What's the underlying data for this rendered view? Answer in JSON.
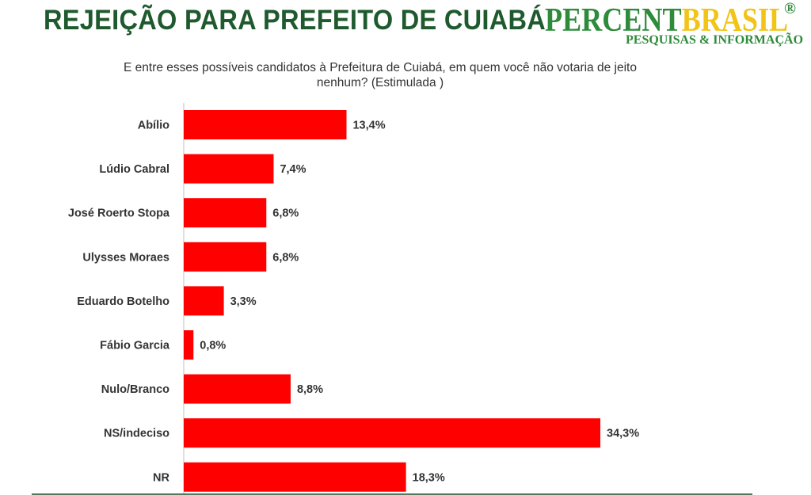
{
  "header": {
    "title": "REJEIÇÃO PARA PREFEITO DE CUIABÁ",
    "logo": {
      "text_part1": "PERCENT",
      "text_part2": "BRASIL",
      "registered_mark": "®",
      "tagline": "PESQUISAS & INFORMAÇÃO",
      "color_primary": "#2e8b3a",
      "color_secondary": "#f2c417"
    }
  },
  "question": {
    "line1": "E entre esses possíveis candidatos à Prefeitura de Cuiabá, em quem você não votaria de jeito",
    "line2": "nenhum? (Estimulada )"
  },
  "chart_data": {
    "type": "bar",
    "orientation": "horizontal",
    "categories": [
      "Abílio",
      "Lúdio Cabral",
      "José Roerto Stopa",
      "Ulysses Moraes",
      "Eduardo Botelho",
      "Fábio Garcia",
      "Nulo/Branco",
      "NS/indeciso",
      "NR"
    ],
    "values": [
      13.4,
      7.4,
      6.8,
      6.8,
      3.3,
      0.8,
      8.8,
      34.3,
      18.3
    ],
    "value_labels": [
      "13,4%",
      "7,4%",
      "6,8%",
      "6,8%",
      "3,3%",
      "0,8%",
      "8,8%",
      "34,3%",
      "18,3%"
    ],
    "bar_color": "#ff0000",
    "xlim": [
      0,
      34.3
    ],
    "grid": false
  }
}
